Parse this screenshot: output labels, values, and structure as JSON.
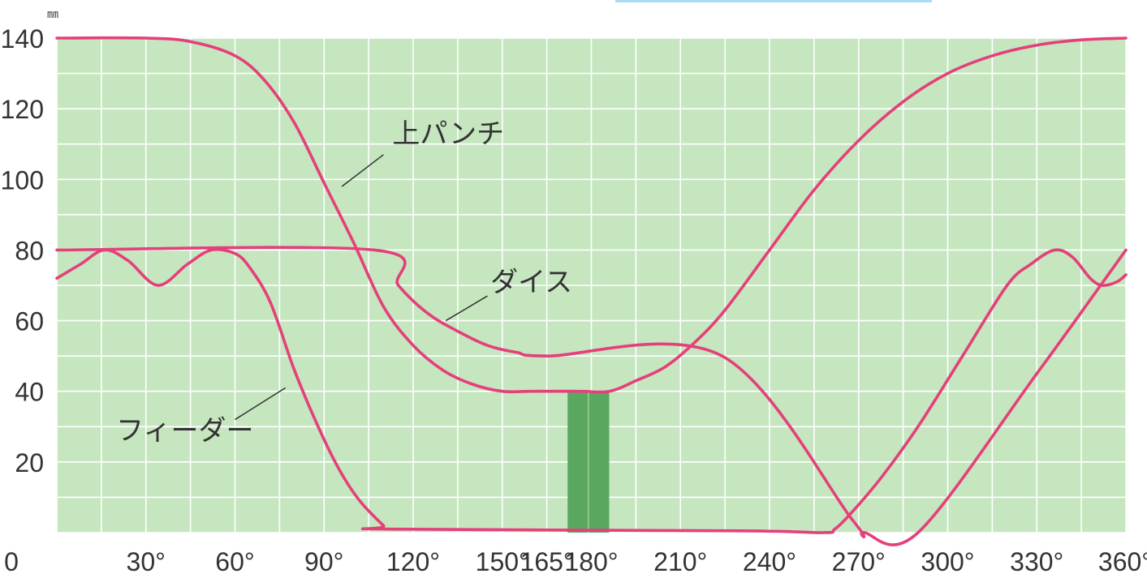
{
  "chart_data": {
    "type": "line",
    "title": "",
    "xlabel": "",
    "ylabel": "",
    "y_unit": "㎜",
    "xlim": [
      0,
      360
    ],
    "ylim": [
      0,
      140
    ],
    "grid": true,
    "x_gridlines": [
      0,
      15,
      30,
      45,
      60,
      75,
      90,
      105,
      120,
      135,
      150,
      165,
      180,
      195,
      210,
      225,
      240,
      255,
      270,
      285,
      300,
      315,
      330,
      345,
      360
    ],
    "y_gridlines": [
      0,
      10,
      20,
      30,
      40,
      50,
      60,
      70,
      80,
      90,
      100,
      110,
      120,
      130,
      140
    ],
    "x_ticks": [
      {
        "x": 0,
        "label": "0"
      },
      {
        "x": 30,
        "label": "30°"
      },
      {
        "x": 60,
        "label": "60°"
      },
      {
        "x": 90,
        "label": "90°"
      },
      {
        "x": 120,
        "label": "120°"
      },
      {
        "x": 150,
        "label": "150°"
      },
      {
        "x": 165,
        "label": "165°"
      },
      {
        "x": 180,
        "label": "180°"
      },
      {
        "x": 210,
        "label": "210°"
      },
      {
        "x": 240,
        "label": "240°"
      },
      {
        "x": 270,
        "label": "270°"
      },
      {
        "x": 300,
        "label": "300°"
      },
      {
        "x": 330,
        "label": "330°"
      },
      {
        "x": 360,
        "label": "360°"
      }
    ],
    "y_ticks": [
      {
        "y": 20,
        "label": "20"
      },
      {
        "y": 40,
        "label": "40"
      },
      {
        "y": 60,
        "label": "60"
      },
      {
        "y": 80,
        "label": "80"
      },
      {
        "y": 100,
        "label": "100"
      },
      {
        "y": 120,
        "label": "120"
      },
      {
        "y": 140,
        "label": "140"
      }
    ],
    "highlight_band": {
      "x_start": 172,
      "x_end": 186,
      "y_top": 40
    },
    "series": [
      {
        "name": "上パンチ",
        "points": [
          [
            0,
            140
          ],
          [
            30,
            140
          ],
          [
            45,
            139
          ],
          [
            60,
            135
          ],
          [
            70,
            128
          ],
          [
            80,
            116
          ],
          [
            90,
            99
          ],
          [
            100,
            82
          ],
          [
            110,
            64
          ],
          [
            120,
            53
          ],
          [
            130,
            46
          ],
          [
            140,
            42
          ],
          [
            150,
            40
          ],
          [
            160,
            40
          ],
          [
            176,
            40
          ],
          [
            186,
            40
          ],
          [
            195,
            43
          ],
          [
            205,
            47
          ],
          [
            215,
            54
          ],
          [
            225,
            63
          ],
          [
            240,
            80
          ],
          [
            255,
            97
          ],
          [
            270,
            111
          ],
          [
            285,
            122
          ],
          [
            300,
            130
          ],
          [
            315,
            135
          ],
          [
            330,
            138
          ],
          [
            345,
            139.5
          ],
          [
            360,
            140
          ]
        ]
      },
      {
        "name": "ダイス",
        "points": [
          [
            0,
            80
          ],
          [
            107,
            80
          ],
          [
            115,
            70
          ],
          [
            125,
            62
          ],
          [
            135,
            57
          ],
          [
            145,
            53
          ],
          [
            155,
            51
          ],
          [
            165,
            50
          ],
          [
            224,
            50
          ],
          [
            268,
            3.5
          ],
          [
            272,
            0
          ],
          [
            290,
            0
          ],
          [
            330,
            45
          ],
          [
            360,
            80
          ]
        ]
      },
      {
        "name": "フィーダー",
        "points": [
          [
            0,
            72
          ],
          [
            8,
            76
          ],
          [
            16,
            80
          ],
          [
            24,
            77
          ],
          [
            34,
            70
          ],
          [
            44,
            76
          ],
          [
            52,
            80
          ],
          [
            60,
            79
          ],
          [
            65,
            75
          ],
          [
            72,
            65
          ],
          [
            80,
            46
          ],
          [
            88,
            30
          ],
          [
            95,
            18
          ],
          [
            102,
            9
          ],
          [
            110,
            2
          ],
          [
            112,
            1
          ],
          [
            230,
            0.5
          ],
          [
            258,
            0
          ],
          [
            262,
            1
          ],
          [
            268,
            6
          ],
          [
            278,
            16
          ],
          [
            290,
            30
          ],
          [
            305,
            50
          ],
          [
            320,
            70
          ],
          [
            328,
            76
          ],
          [
            336,
            80
          ],
          [
            342,
            78
          ],
          [
            348,
            72
          ],
          [
            352,
            70
          ],
          [
            357,
            71
          ],
          [
            360,
            73
          ]
        ]
      }
    ],
    "annotations": [
      {
        "text": "上パンチ",
        "series": "上パンチ",
        "label_at": [
          113,
          113
        ],
        "line_from": [
          110,
          107
        ],
        "line_to": [
          96,
          98
        ]
      },
      {
        "text": "ダイス",
        "series": "ダイス",
        "label_at": [
          146,
          71
        ],
        "line_from": [
          145,
          67
        ],
        "line_to": [
          131,
          60
        ]
      },
      {
        "text": "フィーダー",
        "series": "フィーダー",
        "label_at": [
          20,
          29
        ],
        "line_from": [
          60,
          32
        ],
        "line_to": [
          77,
          41
        ]
      }
    ],
    "colors": {
      "plot_background": "#c6e6c0",
      "gridline": "#ffffff",
      "series_line": "#e4407a",
      "highlight_band": "#5aa860",
      "axis_text": "#333333"
    }
  },
  "decorations": {
    "top_bar_color": "#a9dcf4"
  }
}
